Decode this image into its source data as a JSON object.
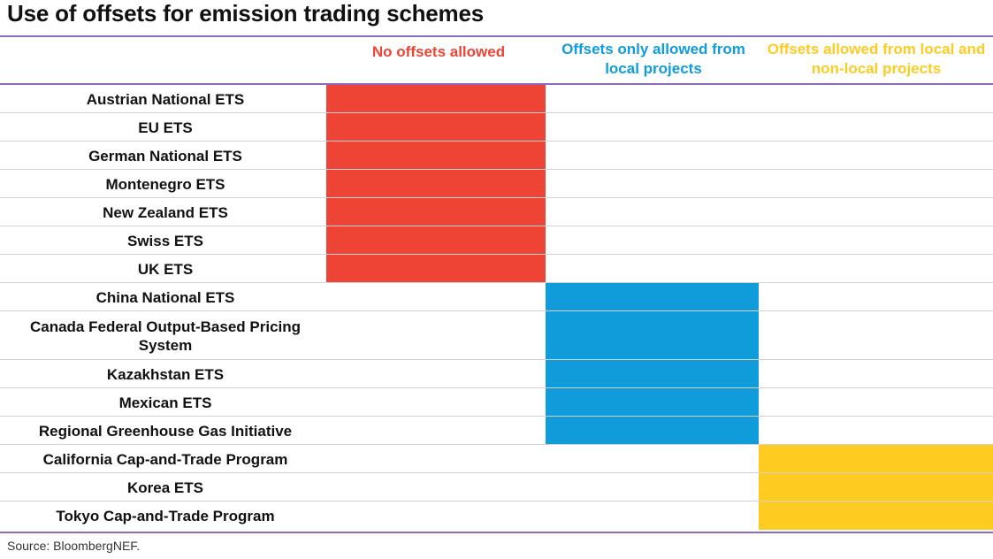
{
  "title": "Use of offsets for emission trading schemes",
  "source": "Source: BloombergNEF.",
  "colors": {
    "rule": "#8e6bb8",
    "no_offsets": "#ee4435",
    "local_only": "#109cdb",
    "local_and_nonlocal": "#fecb21",
    "row_line": "#d2d2d2"
  },
  "chart_data": {
    "type": "table",
    "columns": [
      {
        "label": "No offsets allowed",
        "color": "#ee4435"
      },
      {
        "label": "Offsets only allowed from local projects",
        "color": "#109cdb"
      },
      {
        "label": "Offsets allowed from local and non-local projects",
        "color": "#fecb21"
      }
    ],
    "rows": [
      {
        "label": "Austrian National ETS",
        "category": 0
      },
      {
        "label": "EU ETS",
        "category": 0
      },
      {
        "label": "German National ETS",
        "category": 0
      },
      {
        "label": "Montenegro ETS",
        "category": 0
      },
      {
        "label": "New Zealand ETS",
        "category": 0
      },
      {
        "label": "Swiss ETS",
        "category": 0
      },
      {
        "label": "UK ETS",
        "category": 0
      },
      {
        "label": "China National ETS",
        "category": 1
      },
      {
        "label": "Canada Federal Output-Based Pricing System",
        "category": 1
      },
      {
        "label": "Kazakhstan ETS",
        "category": 1
      },
      {
        "label": "Mexican ETS",
        "category": 1
      },
      {
        "label": "Regional Greenhouse Gas Initiative",
        "category": 1
      },
      {
        "label": "California Cap-and-Trade Program",
        "category": 2
      },
      {
        "label": "Korea ETS",
        "category": 2
      },
      {
        "label": "Tokyo Cap-and-Trade Program",
        "category": 2
      }
    ]
  }
}
